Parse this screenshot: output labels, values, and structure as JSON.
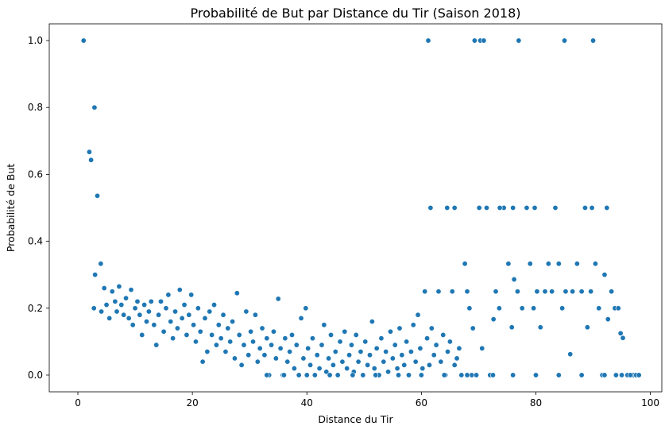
{
  "chart_data": {
    "type": "scatter",
    "title": "Probabilité de But par Distance du Tir (Saison 2018)",
    "xlabel": "Distance du Tir",
    "ylabel": "Probabilité de But",
    "xlim": [
      -5,
      102
    ],
    "ylim": [
      -0.05,
      1.05
    ],
    "x_ticks": [
      0,
      20,
      40,
      60,
      80,
      100
    ],
    "y_ticks": [
      0.0,
      0.2,
      0.4,
      0.6,
      0.8,
      1.0
    ],
    "x_tick_labels": [
      "0",
      "20",
      "40",
      "60",
      "80",
      "100"
    ],
    "y_tick_labels": [
      "0.0",
      "0.2",
      "0.4",
      "0.6",
      "0.8",
      "1.0"
    ],
    "grid": false,
    "marker_color": "#1f77b4",
    "marker_edge_color": "#ffffff",
    "series": [
      {
        "points": [
          [
            1.0,
            1.0
          ],
          [
            2.0,
            0.667
          ],
          [
            2.3,
            0.643
          ],
          [
            2.9,
            0.8
          ],
          [
            3.4,
            0.536
          ],
          [
            3.0,
            0.3
          ],
          [
            2.8,
            0.2
          ],
          [
            4.0,
            0.333
          ],
          [
            4.1,
            0.19
          ],
          [
            4.6,
            0.26
          ],
          [
            5.0,
            0.21
          ],
          [
            5.5,
            0.17
          ],
          [
            6.0,
            0.25
          ],
          [
            6.5,
            0.22
          ],
          [
            6.8,
            0.19
          ],
          [
            7.2,
            0.265
          ],
          [
            7.6,
            0.21
          ],
          [
            8.0,
            0.18
          ],
          [
            8.4,
            0.23
          ],
          [
            8.9,
            0.17
          ],
          [
            9.3,
            0.255
          ],
          [
            9.6,
            0.15
          ],
          [
            10.0,
            0.2
          ],
          [
            10.4,
            0.22
          ],
          [
            10.8,
            0.18
          ],
          [
            11.2,
            0.12
          ],
          [
            11.6,
            0.21
          ],
          [
            12.0,
            0.16
          ],
          [
            12.4,
            0.19
          ],
          [
            12.8,
            0.22
          ],
          [
            13.3,
            0.15
          ],
          [
            13.7,
            0.09
          ],
          [
            14.1,
            0.18
          ],
          [
            14.5,
            0.22
          ],
          [
            15.0,
            0.13
          ],
          [
            15.4,
            0.2
          ],
          [
            15.8,
            0.24
          ],
          [
            16.2,
            0.16
          ],
          [
            16.6,
            0.11
          ],
          [
            17.0,
            0.19
          ],
          [
            17.4,
            0.14
          ],
          [
            17.8,
            0.255
          ],
          [
            18.2,
            0.17
          ],
          [
            18.6,
            0.21
          ],
          [
            19.0,
            0.12
          ],
          [
            19.4,
            0.18
          ],
          [
            19.8,
            0.24
          ],
          [
            20.2,
            0.15
          ],
          [
            20.6,
            0.1
          ],
          [
            21.0,
            0.2
          ],
          [
            21.4,
            0.13
          ],
          [
            21.8,
            0.04
          ],
          [
            22.2,
            0.17
          ],
          [
            22.6,
            0.07
          ],
          [
            23.0,
            0.19
          ],
          [
            23.4,
            0.12
          ],
          [
            23.8,
            0.21
          ],
          [
            24.2,
            0.09
          ],
          [
            24.6,
            0.15
          ],
          [
            25.0,
            0.11
          ],
          [
            25.4,
            0.18
          ],
          [
            25.8,
            0.07
          ],
          [
            26.2,
            0.14
          ],
          [
            26.6,
            0.1
          ],
          [
            27.0,
            0.16
          ],
          [
            27.4,
            0.05
          ],
          [
            27.8,
            0.245
          ],
          [
            28.2,
            0.12
          ],
          [
            28.6,
            0.03
          ],
          [
            29.0,
            0.09
          ],
          [
            29.4,
            0.19
          ],
          [
            29.8,
            0.06
          ],
          [
            30.2,
            0.13
          ],
          [
            30.6,
            0.1
          ],
          [
            31.0,
            0.18
          ],
          [
            31.4,
            0.04
          ],
          [
            31.8,
            0.08
          ],
          [
            32.2,
            0.14
          ],
          [
            32.6,
            0.06
          ],
          [
            33.0,
            0.11
          ],
          [
            33.4,
            0.0
          ],
          [
            33.8,
            0.09
          ],
          [
            34.2,
            0.13
          ],
          [
            34.6,
            0.05
          ],
          [
            35.0,
            0.228
          ],
          [
            35.4,
            0.08
          ],
          [
            35.8,
            0.0
          ],
          [
            36.2,
            0.11
          ],
          [
            36.6,
            0.04
          ],
          [
            37.0,
            0.07
          ],
          [
            37.4,
            0.12
          ],
          [
            37.8,
            0.02
          ],
          [
            38.2,
            0.09
          ],
          [
            38.6,
            0.0
          ],
          [
            39.0,
            0.17
          ],
          [
            39.4,
            0.05
          ],
          [
            39.8,
            0.2
          ],
          [
            40.2,
            0.08
          ],
          [
            40.6,
            0.03
          ],
          [
            41.0,
            0.11
          ],
          [
            41.4,
            0.0
          ],
          [
            41.8,
            0.06
          ],
          [
            42.2,
            0.02
          ],
          [
            42.6,
            0.09
          ],
          [
            43.0,
            0.15
          ],
          [
            43.4,
            0.01
          ],
          [
            43.8,
            0.05
          ],
          [
            44.2,
            0.12
          ],
          [
            44.6,
            0.03
          ],
          [
            45.0,
            0.07
          ],
          [
            45.4,
            0.0
          ],
          [
            45.8,
            0.1
          ],
          [
            46.2,
            0.04
          ],
          [
            46.6,
            0.13
          ],
          [
            47.0,
            0.02
          ],
          [
            47.4,
            0.06
          ],
          [
            47.8,
            0.09
          ],
          [
            48.2,
            0.01
          ],
          [
            48.6,
            0.12
          ],
          [
            49.0,
            0.04
          ],
          [
            49.4,
            0.07
          ],
          [
            49.8,
            0.0
          ],
          [
            50.2,
            0.1
          ],
          [
            50.6,
            0.03
          ],
          [
            51.0,
            0.06
          ],
          [
            51.4,
            0.16
          ],
          [
            51.8,
            0.02
          ],
          [
            52.2,
            0.08
          ],
          [
            52.6,
            0.0
          ],
          [
            53.0,
            0.11
          ],
          [
            53.4,
            0.04
          ],
          [
            53.8,
            0.07
          ],
          [
            54.2,
            0.01
          ],
          [
            54.6,
            0.13
          ],
          [
            55.0,
            0.05
          ],
          [
            55.4,
            0.09
          ],
          [
            55.8,
            0.02
          ],
          [
            56.2,
            0.14
          ],
          [
            56.6,
            0.06
          ],
          [
            57.0,
            0.03
          ],
          [
            57.4,
            0.1
          ],
          [
            57.8,
            0.0
          ],
          [
            58.2,
            0.07
          ],
          [
            58.6,
            0.15
          ],
          [
            59.0,
            0.04
          ],
          [
            59.4,
            0.18
          ],
          [
            59.8,
            0.08
          ],
          [
            60.2,
            0.02
          ],
          [
            60.6,
            0.25
          ],
          [
            61.0,
            0.11
          ],
          [
            61.4,
            0.03
          ],
          [
            61.8,
            0.14
          ],
          [
            62.2,
            0.06
          ],
          [
            62.6,
            0.09
          ],
          [
            63.0,
            0.25
          ],
          [
            63.4,
            0.04
          ],
          [
            63.8,
            0.12
          ],
          [
            64.2,
            0.0
          ],
          [
            64.6,
            0.07
          ],
          [
            65.0,
            0.1
          ],
          [
            65.4,
            0.25
          ],
          [
            65.8,
            0.03
          ],
          [
            66.2,
            0.05
          ],
          [
            66.6,
            0.08
          ],
          [
            67.0,
            0.0
          ],
          [
            67.6,
            0.333
          ],
          [
            68.0,
            0.25
          ],
          [
            68.4,
            0.2
          ],
          [
            68.8,
            0.0
          ],
          [
            69.0,
            0.14
          ],
          [
            69.6,
            0.0
          ],
          [
            70.2,
            0.5
          ],
          [
            70.6,
            0.08
          ],
          [
            71.4,
            0.5
          ],
          [
            72.0,
            0.0
          ],
          [
            72.6,
            0.167
          ],
          [
            73.0,
            0.25
          ],
          [
            73.6,
            0.2
          ],
          [
            74.4,
            0.5
          ],
          [
            75.2,
            0.333
          ],
          [
            75.8,
            0.143
          ],
          [
            76.2,
            0.286
          ],
          [
            76.8,
            0.25
          ],
          [
            77.6,
            0.2
          ],
          [
            78.4,
            0.5
          ],
          [
            79.0,
            0.333
          ],
          [
            79.6,
            0.2
          ],
          [
            80.2,
            0.25
          ],
          [
            80.8,
            0.143
          ],
          [
            81.6,
            0.25
          ],
          [
            82.2,
            0.333
          ],
          [
            82.8,
            0.25
          ],
          [
            83.4,
            0.5
          ],
          [
            84.0,
            0.333
          ],
          [
            84.6,
            0.2
          ],
          [
            85.2,
            0.25
          ],
          [
            86.0,
            0.0625
          ],
          [
            86.4,
            0.25
          ],
          [
            87.2,
            0.333
          ],
          [
            88.0,
            0.25
          ],
          [
            88.6,
            0.5
          ],
          [
            89.0,
            0.143
          ],
          [
            89.6,
            0.25
          ],
          [
            90.4,
            0.333
          ],
          [
            91.0,
            0.2
          ],
          [
            91.6,
            0.0
          ],
          [
            92.0,
            0.3
          ],
          [
            92.6,
            0.167
          ],
          [
            93.2,
            0.25
          ],
          [
            93.8,
            0.2
          ],
          [
            94.4,
            0.2
          ],
          [
            94.8,
            0.125
          ],
          [
            95.2,
            0.111
          ],
          [
            96.0,
            0.0
          ],
          [
            97.0,
            0.0
          ],
          [
            61.2,
            1.0
          ],
          [
            69.3,
            1.0
          ],
          [
            70.3,
            1.0
          ],
          [
            70.9,
            1.0
          ],
          [
            77.0,
            1.0
          ],
          [
            85.0,
            1.0
          ],
          [
            90.0,
            1.0
          ],
          [
            61.6,
            0.5
          ],
          [
            64.5,
            0.5
          ],
          [
            65.8,
            0.5
          ],
          [
            70.1,
            0.5
          ],
          [
            73.7,
            0.5
          ],
          [
            76.0,
            0.5
          ],
          [
            79.8,
            0.5
          ],
          [
            89.8,
            0.5
          ],
          [
            92.4,
            0.5
          ],
          [
            33.0,
            0.0
          ],
          [
            36.0,
            0.0
          ],
          [
            40.0,
            0.0
          ],
          [
            44.0,
            0.0
          ],
          [
            48.0,
            0.0
          ],
          [
            52.0,
            0.0
          ],
          [
            56.0,
            0.0
          ],
          [
            60.0,
            0.0
          ],
          [
            64.0,
            0.0
          ],
          [
            68.0,
            0.0
          ],
          [
            72.5,
            0.0
          ],
          [
            76.0,
            0.0
          ],
          [
            80.0,
            0.0
          ],
          [
            84.0,
            0.0
          ],
          [
            88.0,
            0.0
          ],
          [
            92.0,
            0.0
          ],
          [
            94.0,
            0.0
          ],
          [
            95.0,
            0.0
          ],
          [
            96.5,
            0.0
          ],
          [
            97.5,
            0.0
          ],
          [
            98.0,
            0.0
          ]
        ]
      }
    ]
  }
}
